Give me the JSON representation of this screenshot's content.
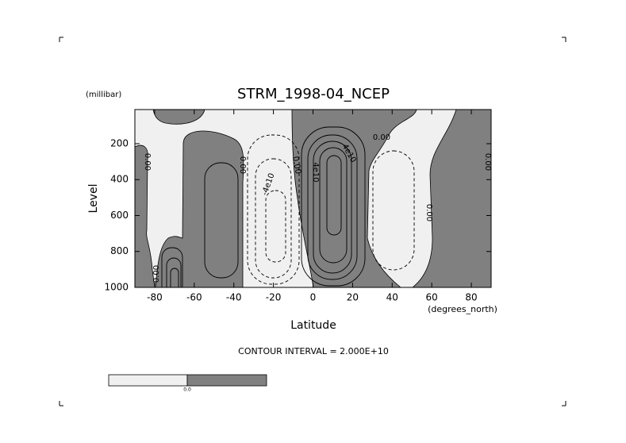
{
  "chart_data": {
    "type": "contour",
    "title": "STRM_1998-04_NCEP",
    "ylabel": "Level",
    "y_unit": "(millibar)",
    "xlabel": "Latitude",
    "x_unit": "(degrees_north)",
    "contour_interval_text": "CONTOUR INTERVAL = 2.000E+10",
    "xlim": [
      -90,
      90
    ],
    "xticks": [
      -80,
      -60,
      -40,
      -20,
      0,
      20,
      40,
      60,
      80
    ],
    "ylim": [
      1000,
      10
    ],
    "yticks": [
      200,
      400,
      600,
      800,
      1000
    ],
    "contour_levels": [
      -60000000000,
      -40000000000,
      -20000000000,
      0,
      20000000000,
      40000000000,
      60000000000,
      80000000000,
      100000000000
    ],
    "contour_labels": [
      {
        "value": 0,
        "label": "0.00"
      },
      {
        "value": 40000000000,
        "label": "4e10"
      },
      {
        "value": -40000000000,
        "label": "-4e10"
      }
    ],
    "shading": {
      "colors": [
        "#f0f0f0",
        "#808080"
      ],
      "label": "0.0"
    }
  }
}
